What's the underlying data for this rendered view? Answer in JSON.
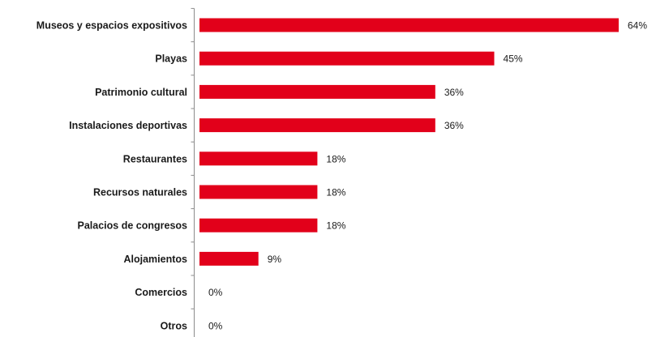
{
  "chart_data": {
    "type": "bar",
    "orientation": "horizontal",
    "categories": [
      "Museos y espacios expositivos",
      "Playas",
      "Patrimonio cultural",
      "Instalaciones deportivas",
      "Restaurantes",
      "Recursos naturales",
      "Palacios de congresos",
      "Alojamientos",
      "Comercios",
      "Otros"
    ],
    "values": [
      64,
      45,
      36,
      36,
      18,
      18,
      18,
      9,
      0,
      0
    ],
    "value_labels": [
      "64%",
      "45%",
      "36%",
      "36%",
      "18%",
      "18%",
      "18%",
      "9%",
      "0%",
      "0%"
    ],
    "unit": "%",
    "xlim": [
      0,
      64
    ],
    "bar_color": "#e2001a",
    "grid": false,
    "legend": "none"
  }
}
